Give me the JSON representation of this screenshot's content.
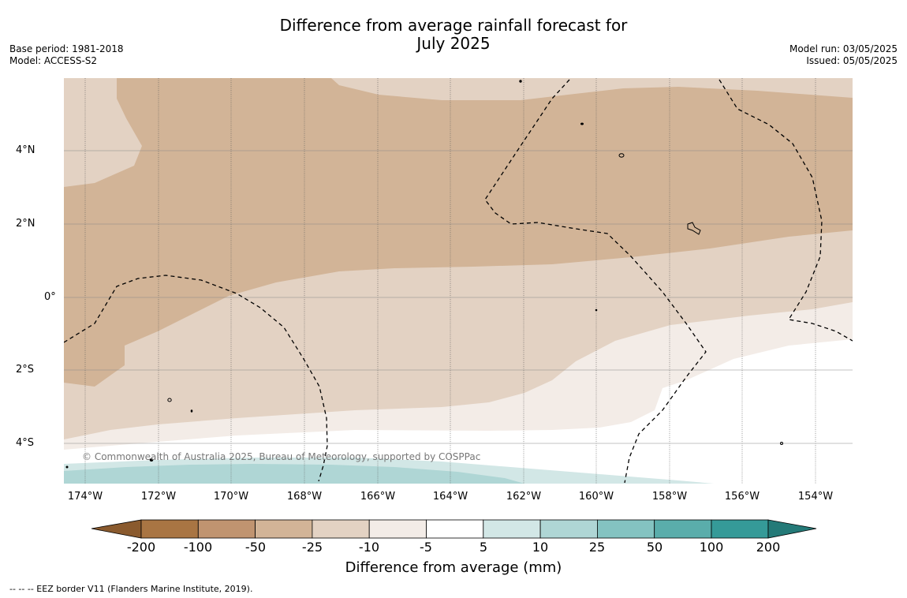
{
  "title": {
    "line1": "Difference from average rainfall forecast for",
    "line2": "July 2025"
  },
  "meta_left": {
    "base_period": "Base period: 1981-2018",
    "model": "Model: ACCESS-S2"
  },
  "meta_right": {
    "model_run": "Model run: 03/05/2025",
    "issued": "Issued: 05/05/2025"
  },
  "map": {
    "lat_labels": [
      "4°N",
      "2°N",
      "0°",
      "2°S",
      "4°S"
    ],
    "lon_labels": [
      "174°W",
      "172°W",
      "170°W",
      "168°W",
      "166°W",
      "164°W",
      "162°W",
      "160°W",
      "158°W",
      "156°W",
      "154°W"
    ],
    "copyright": "© Commonwealth of Australia 2025, Bureau of Meteorology, supported by COSPPac",
    "colors": {
      "neg200": "#a97543",
      "neg100": "#c09470",
      "neg50": "#d2b497",
      "neg25": "#e3d2c3",
      "neg10": "#f3ece7",
      "zero": "#ffffff",
      "pos10": "#d2e7e6",
      "pos25": "#afd6d5",
      "pos50": "#84c3c1",
      "pos100": "#5aadab",
      "pos200": "#359a98"
    }
  },
  "colorbar": {
    "labels": [
      "-200",
      "-100",
      "-50",
      "-25",
      "-10",
      "-5",
      "5",
      "10",
      "25",
      "50",
      "100",
      "200"
    ],
    "title": "Difference from average (mm)"
  },
  "footnote": "--  --  -- EEZ border V11 (Flanders Marine Institute, 2019)."
}
